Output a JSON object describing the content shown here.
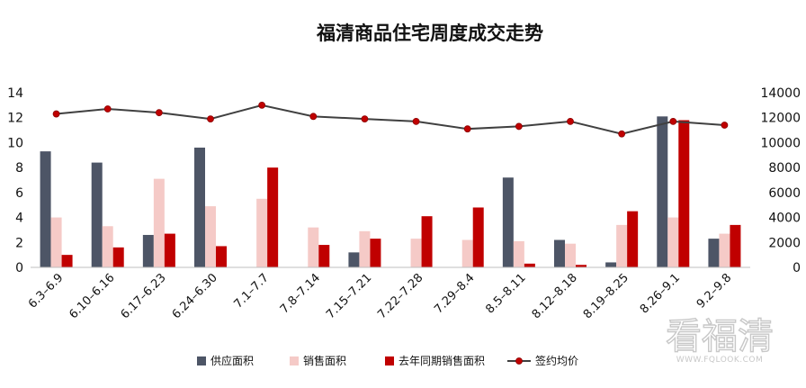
{
  "chart_data": {
    "type": "bar",
    "title": "福清商品住宅周度成交走势",
    "categories": [
      "6.3–6.9",
      "6.10–6.16",
      "6.17–6.23",
      "6.24–6.30",
      "7.1–7.7",
      "7.8–7.14",
      "7.15–7.21",
      "7.22–7.28",
      "7.29–8.4",
      "8.5–8.11",
      "8.12–8.18",
      "8.19–8.25",
      "8.26–9.1",
      "9.2–9.8"
    ],
    "series": [
      {
        "name": "供应面积",
        "type": "bar",
        "axis": "left",
        "color": "#4d5566",
        "values": [
          9.3,
          8.4,
          2.6,
          9.6,
          0,
          0,
          1.2,
          0,
          0,
          7.2,
          2.2,
          0.4,
          12.1,
          2.3
        ]
      },
      {
        "name": "销售面积",
        "type": "bar",
        "axis": "left",
        "color": "#f5cac7",
        "values": [
          4.0,
          3.3,
          7.1,
          4.9,
          5.5,
          3.2,
          2.9,
          2.3,
          2.2,
          2.1,
          1.9,
          3.4,
          4.0,
          2.7
        ]
      },
      {
        "name": "去年同期销售面积",
        "type": "bar",
        "axis": "left",
        "color": "#c00000",
        "values": [
          1.0,
          1.6,
          2.7,
          1.7,
          8.0,
          1.8,
          2.3,
          4.1,
          4.8,
          0.3,
          0.2,
          4.5,
          11.8,
          3.4
        ]
      },
      {
        "name": "签约均价",
        "type": "line",
        "axis": "right",
        "color": "#404040",
        "marker_color": "#c00000",
        "values": [
          12300,
          12700,
          12400,
          11900,
          13000,
          12100,
          11900,
          11700,
          11100,
          11300,
          11700,
          10700,
          11700,
          11400
        ]
      }
    ],
    "y_left": {
      "min": 0,
      "max": 14,
      "ticks": [
        0,
        2,
        4,
        6,
        8,
        10,
        12,
        14
      ]
    },
    "y_right": {
      "min": 0,
      "max": 14000,
      "ticks": [
        0,
        2000,
        4000,
        6000,
        8000,
        10000,
        12000,
        14000
      ]
    },
    "grid": false,
    "legend_position": "bottom"
  },
  "watermark": {
    "main": "看福清",
    "sub": "WWW.FQLOOK.COM"
  }
}
